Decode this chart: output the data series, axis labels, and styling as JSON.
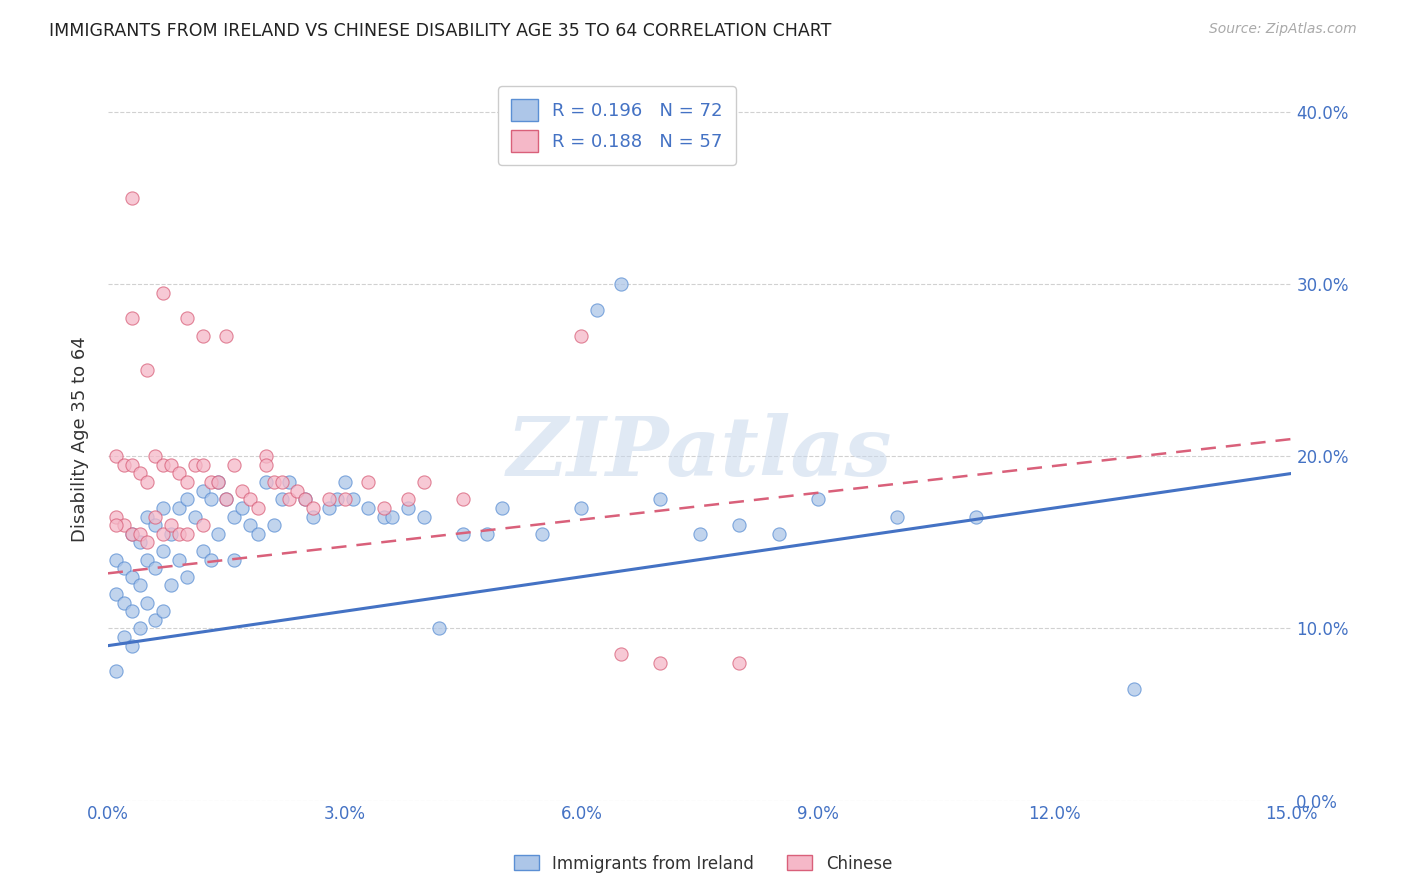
{
  "title": "IMMIGRANTS FROM IRELAND VS CHINESE DISABILITY AGE 35 TO 64 CORRELATION CHART",
  "source": "Source: ZipAtlas.com",
  "ylabel": "Disability Age 35 to 64",
  "legend_label1": "Immigrants from Ireland",
  "legend_label2": "Chinese",
  "r1": 0.196,
  "n1": 72,
  "r2": 0.188,
  "n2": 57,
  "xlim": [
    0.0,
    0.15
  ],
  "ylim": [
    0.0,
    0.42
  ],
  "xticks": [
    0.0,
    0.03,
    0.06,
    0.09,
    0.12,
    0.15
  ],
  "yticks": [
    0.0,
    0.1,
    0.2,
    0.3,
    0.4
  ],
  "color1_fill": "#adc6e8",
  "color1_edge": "#5b8fd4",
  "color2_fill": "#f5b8c8",
  "color2_edge": "#d9607a",
  "line1_color": "#4472c4",
  "line2_color": "#d9607a",
  "watermark": "ZIPatlas",
  "background": "#ffffff",
  "grid_color": "#cccccc",
  "line1_y0": 0.09,
  "line1_y1": 0.19,
  "line2_y0": 0.132,
  "line2_y1": 0.21,
  "scatter1_x": [
    0.001,
    0.001,
    0.002,
    0.002,
    0.002,
    0.003,
    0.003,
    0.003,
    0.003,
    0.004,
    0.004,
    0.004,
    0.005,
    0.005,
    0.005,
    0.006,
    0.006,
    0.006,
    0.007,
    0.007,
    0.007,
    0.008,
    0.008,
    0.009,
    0.009,
    0.01,
    0.01,
    0.011,
    0.012,
    0.012,
    0.013,
    0.013,
    0.014,
    0.014,
    0.015,
    0.016,
    0.016,
    0.017,
    0.018,
    0.019,
    0.02,
    0.021,
    0.022,
    0.023,
    0.025,
    0.026,
    0.028,
    0.029,
    0.03,
    0.031,
    0.033,
    0.035,
    0.036,
    0.038,
    0.04,
    0.042,
    0.045,
    0.048,
    0.05,
    0.055,
    0.06,
    0.062,
    0.065,
    0.07,
    0.075,
    0.08,
    0.085,
    0.09,
    0.1,
    0.11,
    0.13,
    0.001
  ],
  "scatter1_y": [
    0.14,
    0.12,
    0.135,
    0.115,
    0.095,
    0.155,
    0.13,
    0.11,
    0.09,
    0.15,
    0.125,
    0.1,
    0.165,
    0.14,
    0.115,
    0.16,
    0.135,
    0.105,
    0.17,
    0.145,
    0.11,
    0.155,
    0.125,
    0.17,
    0.14,
    0.175,
    0.13,
    0.165,
    0.18,
    0.145,
    0.175,
    0.14,
    0.185,
    0.155,
    0.175,
    0.165,
    0.14,
    0.17,
    0.16,
    0.155,
    0.185,
    0.16,
    0.175,
    0.185,
    0.175,
    0.165,
    0.17,
    0.175,
    0.185,
    0.175,
    0.17,
    0.165,
    0.165,
    0.17,
    0.165,
    0.1,
    0.155,
    0.155,
    0.17,
    0.155,
    0.17,
    0.285,
    0.3,
    0.175,
    0.155,
    0.16,
    0.155,
    0.175,
    0.165,
    0.165,
    0.065,
    0.075
  ],
  "scatter2_x": [
    0.001,
    0.001,
    0.002,
    0.002,
    0.003,
    0.003,
    0.003,
    0.004,
    0.004,
    0.005,
    0.005,
    0.006,
    0.006,
    0.007,
    0.007,
    0.008,
    0.008,
    0.009,
    0.009,
    0.01,
    0.01,
    0.011,
    0.012,
    0.012,
    0.013,
    0.014,
    0.015,
    0.016,
    0.017,
    0.018,
    0.019,
    0.02,
    0.021,
    0.022,
    0.023,
    0.024,
    0.025,
    0.026,
    0.028,
    0.03,
    0.033,
    0.035,
    0.038,
    0.04,
    0.045,
    0.06,
    0.065,
    0.07,
    0.08,
    0.012,
    0.01,
    0.015,
    0.02,
    0.007,
    0.005,
    0.003,
    0.001
  ],
  "scatter2_y": [
    0.2,
    0.165,
    0.195,
    0.16,
    0.35,
    0.195,
    0.155,
    0.19,
    0.155,
    0.185,
    0.15,
    0.2,
    0.165,
    0.195,
    0.155,
    0.195,
    0.16,
    0.19,
    0.155,
    0.185,
    0.155,
    0.195,
    0.195,
    0.16,
    0.185,
    0.185,
    0.175,
    0.195,
    0.18,
    0.175,
    0.17,
    0.2,
    0.185,
    0.185,
    0.175,
    0.18,
    0.175,
    0.17,
    0.175,
    0.175,
    0.185,
    0.17,
    0.175,
    0.185,
    0.175,
    0.27,
    0.085,
    0.08,
    0.08,
    0.27,
    0.28,
    0.27,
    0.195,
    0.295,
    0.25,
    0.28,
    0.16
  ]
}
